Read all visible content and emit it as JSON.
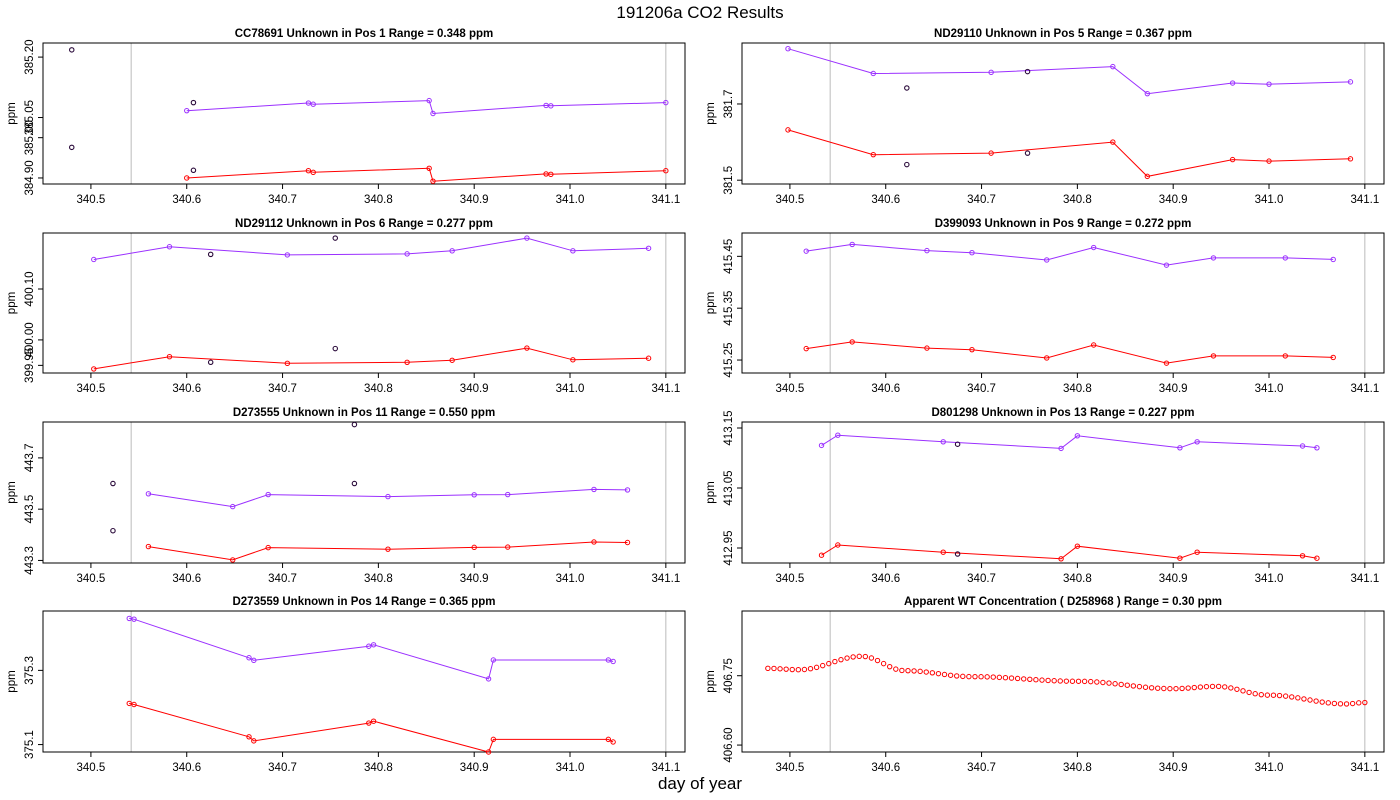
{
  "page": {
    "title": "191206a  CO2 Results",
    "x_label": "day of year"
  },
  "colors": {
    "upper_series": "#9b30ff",
    "lower_series": "#ff0000",
    "reference_points": "#2a0a3a",
    "vertical_marker": "#bbbbbb",
    "frame": "#000000"
  },
  "chart_data": [
    {
      "type": "line",
      "title": "CC78691    Unknown in Pos 1          Range =  0.348 ppm",
      "ylabel": "ppm",
      "xlim": [
        340.45,
        341.12
      ],
      "ylim": [
        384.885,
        385.235
      ],
      "xticks": [
        "340.5",
        "340.6",
        "340.7",
        "340.8",
        "340.9",
        "341.0",
        "341.1"
      ],
      "yticks": [
        "384.90",
        "385.00",
        "385.05",
        "385.20"
      ],
      "vlines": [
        340.542,
        341.1
      ],
      "series": [
        {
          "name": "upper",
          "color_key": "upper_series",
          "x": [
            340.6,
            340.727,
            340.732,
            340.853,
            340.857,
            340.975,
            340.98,
            341.1
          ],
          "y": [
            385.067,
            385.086,
            385.083,
            385.092,
            385.06,
            385.08,
            385.079,
            385.087
          ]
        },
        {
          "name": "lower",
          "color_key": "lower_series",
          "x": [
            340.6,
            340.727,
            340.732,
            340.853,
            340.857,
            340.975,
            340.98,
            341.1
          ],
          "y": [
            384.9,
            384.918,
            384.914,
            384.924,
            384.892,
            384.91,
            384.909,
            384.918
          ]
        }
      ],
      "points": {
        "x": [
          340.48,
          340.48,
          340.607,
          340.607
        ],
        "y": [
          385.218,
          384.976,
          385.087,
          384.919
        ]
      }
    },
    {
      "type": "line",
      "title": "ND29110    Unknown in Pos 5          Range =  0.367 ppm",
      "ylabel": "ppm",
      "xlim": [
        340.45,
        341.12
      ],
      "ylim": [
        381.49,
        381.86
      ],
      "xticks": [
        "340.5",
        "340.6",
        "340.7",
        "340.8",
        "340.9",
        "341.0",
        "341.1"
      ],
      "yticks": [
        "381.5",
        "381.7"
      ],
      "vlines": [
        340.542,
        341.1
      ],
      "series": [
        {
          "name": "upper",
          "color_key": "upper_series",
          "x": [
            340.498,
            340.587,
            340.71,
            340.837,
            340.873,
            340.962,
            341.0,
            341.085
          ],
          "y": [
            381.845,
            381.78,
            381.783,
            381.798,
            381.727,
            381.755,
            381.752,
            381.758
          ]
        },
        {
          "name": "lower",
          "color_key": "lower_series",
          "x": [
            340.498,
            340.587,
            340.71,
            340.837,
            340.873,
            340.962,
            341.0,
            341.085
          ],
          "y": [
            381.632,
            381.567,
            381.571,
            381.6,
            381.51,
            381.554,
            381.55,
            381.556
          ]
        }
      ],
      "points": {
        "x": [
          340.622,
          340.622,
          340.748,
          340.748
        ],
        "y": [
          381.742,
          381.541,
          381.785,
          381.571
        ]
      }
    },
    {
      "type": "line",
      "title": "ND29112    Unknown in Pos 6          Range =  0.277 ppm",
      "ylabel": "ppm",
      "xlim": [
        340.45,
        341.12
      ],
      "ylim": [
        399.935,
        400.21
      ],
      "xticks": [
        "340.5",
        "340.6",
        "340.7",
        "340.8",
        "340.9",
        "341.0",
        "341.1"
      ],
      "yticks": [
        "399.95",
        "400.00",
        "400.10"
      ],
      "vlines": [
        340.542,
        341.1
      ],
      "series": [
        {
          "name": "upper",
          "color_key": "upper_series",
          "x": [
            340.503,
            340.582,
            340.705,
            340.83,
            340.877,
            340.955,
            341.003,
            341.082
          ],
          "y": [
            400.158,
            400.183,
            400.167,
            400.169,
            400.175,
            400.2,
            400.175,
            400.18
          ]
        },
        {
          "name": "lower",
          "color_key": "lower_series",
          "x": [
            340.503,
            340.582,
            340.705,
            340.83,
            340.877,
            340.955,
            341.003,
            341.082
          ],
          "y": [
            399.943,
            399.967,
            399.954,
            399.956,
            399.96,
            399.984,
            399.961,
            399.964
          ]
        }
      ],
      "points": {
        "x": [
          340.625,
          340.625,
          340.755,
          340.755
        ],
        "y": [
          400.168,
          399.956,
          400.2,
          399.983
        ]
      }
    },
    {
      "type": "line",
      "title": "D399093    Unknown in Pos 9          Range =  0.272 ppm",
      "ylabel": "ppm",
      "xlim": [
        340.45,
        341.12
      ],
      "ylim": [
        415.225,
        415.495
      ],
      "xticks": [
        "340.5",
        "340.6",
        "340.7",
        "340.8",
        "340.9",
        "341.0",
        "341.1"
      ],
      "yticks": [
        "415.25",
        "415.35",
        "415.45"
      ],
      "vlines": [
        340.542,
        341.1
      ],
      "series": [
        {
          "name": "upper",
          "color_key": "upper_series",
          "x": [
            340.517,
            340.565,
            340.643,
            340.69,
            340.768,
            340.817,
            340.893,
            340.942,
            341.017,
            341.067
          ],
          "y": [
            415.46,
            415.473,
            415.461,
            415.457,
            415.443,
            415.467,
            415.433,
            415.447,
            415.447,
            415.444
          ]
        },
        {
          "name": "lower",
          "color_key": "lower_series",
          "x": [
            340.517,
            340.565,
            340.643,
            340.69,
            340.768,
            340.817,
            340.893,
            340.942,
            341.017,
            341.067
          ],
          "y": [
            415.272,
            415.285,
            415.273,
            415.27,
            415.254,
            415.279,
            415.244,
            415.258,
            415.258,
            415.255
          ]
        }
      ],
      "points": {
        "x": [],
        "y": []
      }
    },
    {
      "type": "line",
      "title": "D273555    Unknown in Pos 11          Range =  0.550 ppm",
      "ylabel": "ppm",
      "xlim": [
        340.45,
        341.12
      ],
      "ylim": [
        443.29,
        443.84
      ],
      "xticks": [
        "340.5",
        "340.6",
        "340.7",
        "340.8",
        "340.9",
        "341.0",
        "341.1"
      ],
      "yticks": [
        "443.3",
        "443.5",
        "443.7"
      ],
      "vlines": [
        340.542,
        341.1
      ],
      "series": [
        {
          "name": "upper",
          "color_key": "upper_series",
          "x": [
            340.56,
            340.648,
            340.685,
            340.81,
            340.9,
            340.935,
            341.025,
            341.06
          ],
          "y": [
            443.56,
            443.51,
            443.557,
            443.549,
            443.556,
            443.557,
            443.577,
            443.575
          ]
        },
        {
          "name": "lower",
          "color_key": "lower_series",
          "x": [
            340.56,
            340.648,
            340.685,
            340.81,
            340.9,
            340.935,
            341.025,
            341.06
          ],
          "y": [
            443.354,
            443.302,
            443.35,
            443.344,
            443.351,
            443.352,
            443.372,
            443.37
          ]
        }
      ],
      "points": {
        "x": [
          340.523,
          340.523,
          340.775,
          340.775
        ],
        "y": [
          443.6,
          443.416,
          443.83,
          443.6
        ]
      }
    },
    {
      "type": "line",
      "title": "D801298    Unknown in Pos 13          Range =  0.227 ppm",
      "ylabel": "ppm",
      "xlim": [
        340.45,
        341.12
      ],
      "ylim": [
        412.925,
        413.16
      ],
      "xticks": [
        "340.5",
        "340.6",
        "340.7",
        "340.8",
        "340.9",
        "341.0",
        "341.1"
      ],
      "yticks": [
        "412.95",
        "413.05",
        "413.15"
      ],
      "vlines": [
        340.542,
        341.1
      ],
      "series": [
        {
          "name": "upper",
          "color_key": "upper_series",
          "x": [
            340.533,
            340.55,
            340.66,
            340.783,
            340.8,
            340.907,
            340.925,
            341.035,
            341.05
          ],
          "y": [
            413.121,
            413.138,
            413.127,
            413.116,
            413.137,
            413.117,
            413.127,
            413.12,
            413.117
          ]
        },
        {
          "name": "lower",
          "color_key": "lower_series",
          "x": [
            340.533,
            340.55,
            340.66,
            340.783,
            340.8,
            340.907,
            340.925,
            341.035,
            341.05
          ],
          "y": [
            412.938,
            412.955,
            412.943,
            412.932,
            412.953,
            412.933,
            412.943,
            412.937,
            412.933
          ]
        }
      ],
      "points": {
        "x": [
          340.675,
          340.675
        ],
        "y": [
          413.123,
          412.94
        ]
      }
    },
    {
      "type": "line",
      "title": "D273559    Unknown in Pos 14          Range =  0.365 ppm",
      "ylabel": "ppm",
      "xlim": [
        340.45,
        341.12
      ],
      "ylim": [
        375.08,
        375.46
      ],
      "xticks": [
        "340.5",
        "340.6",
        "340.7",
        "340.8",
        "340.9",
        "341.0",
        "341.1"
      ],
      "yticks": [
        "375.1",
        "375.3"
      ],
      "vlines": [
        340.542,
        341.1
      ],
      "series": [
        {
          "name": "upper",
          "color_key": "upper_series",
          "x": [
            340.54,
            340.545,
            340.665,
            340.67,
            340.79,
            340.795,
            340.915,
            340.92,
            341.04,
            341.045
          ],
          "y": [
            375.44,
            375.438,
            375.334,
            375.327,
            375.365,
            375.369,
            375.277,
            375.328,
            375.328,
            375.324
          ]
        },
        {
          "name": "lower",
          "color_key": "lower_series",
          "x": [
            340.54,
            340.545,
            340.665,
            340.67,
            340.79,
            340.795,
            340.915,
            340.92,
            341.04,
            341.045
          ],
          "y": [
            375.211,
            375.208,
            375.121,
            375.11,
            375.158,
            375.163,
            375.08,
            375.114,
            375.114,
            375.107
          ]
        }
      ],
      "points": {
        "x": [],
        "y": []
      }
    },
    {
      "type": "scatter",
      "title": "Apparent WT Concentration ( D258968 )          Range = 0.30 ppm",
      "ylabel": "ppm",
      "xlim": [
        340.45,
        341.12
      ],
      "ylim": [
        406.585,
        406.89
      ],
      "xticks": [
        "340.5",
        "340.6",
        "340.7",
        "340.8",
        "340.9",
        "341.0",
        "341.1"
      ],
      "yticks": [
        "406.60",
        "406.75"
      ],
      "vlines": [
        340.542,
        341.1
      ],
      "series": [
        {
          "name": "WT",
          "color_key": "lower_series",
          "generator": "smooth",
          "n": 99,
          "x_start": 340.477,
          "x_end": 341.1,
          "knots_x": [
            340.477,
            340.51,
            340.575,
            340.62,
            340.69,
            340.8,
            340.9,
            340.945,
            341.0,
            341.08,
            341.1
          ],
          "knots_y": [
            406.766,
            406.763,
            406.792,
            406.761,
            406.748,
            406.738,
            406.722,
            406.727,
            406.708,
            406.689,
            406.692
          ]
        }
      ],
      "points": {
        "x": [],
        "y": []
      }
    }
  ]
}
